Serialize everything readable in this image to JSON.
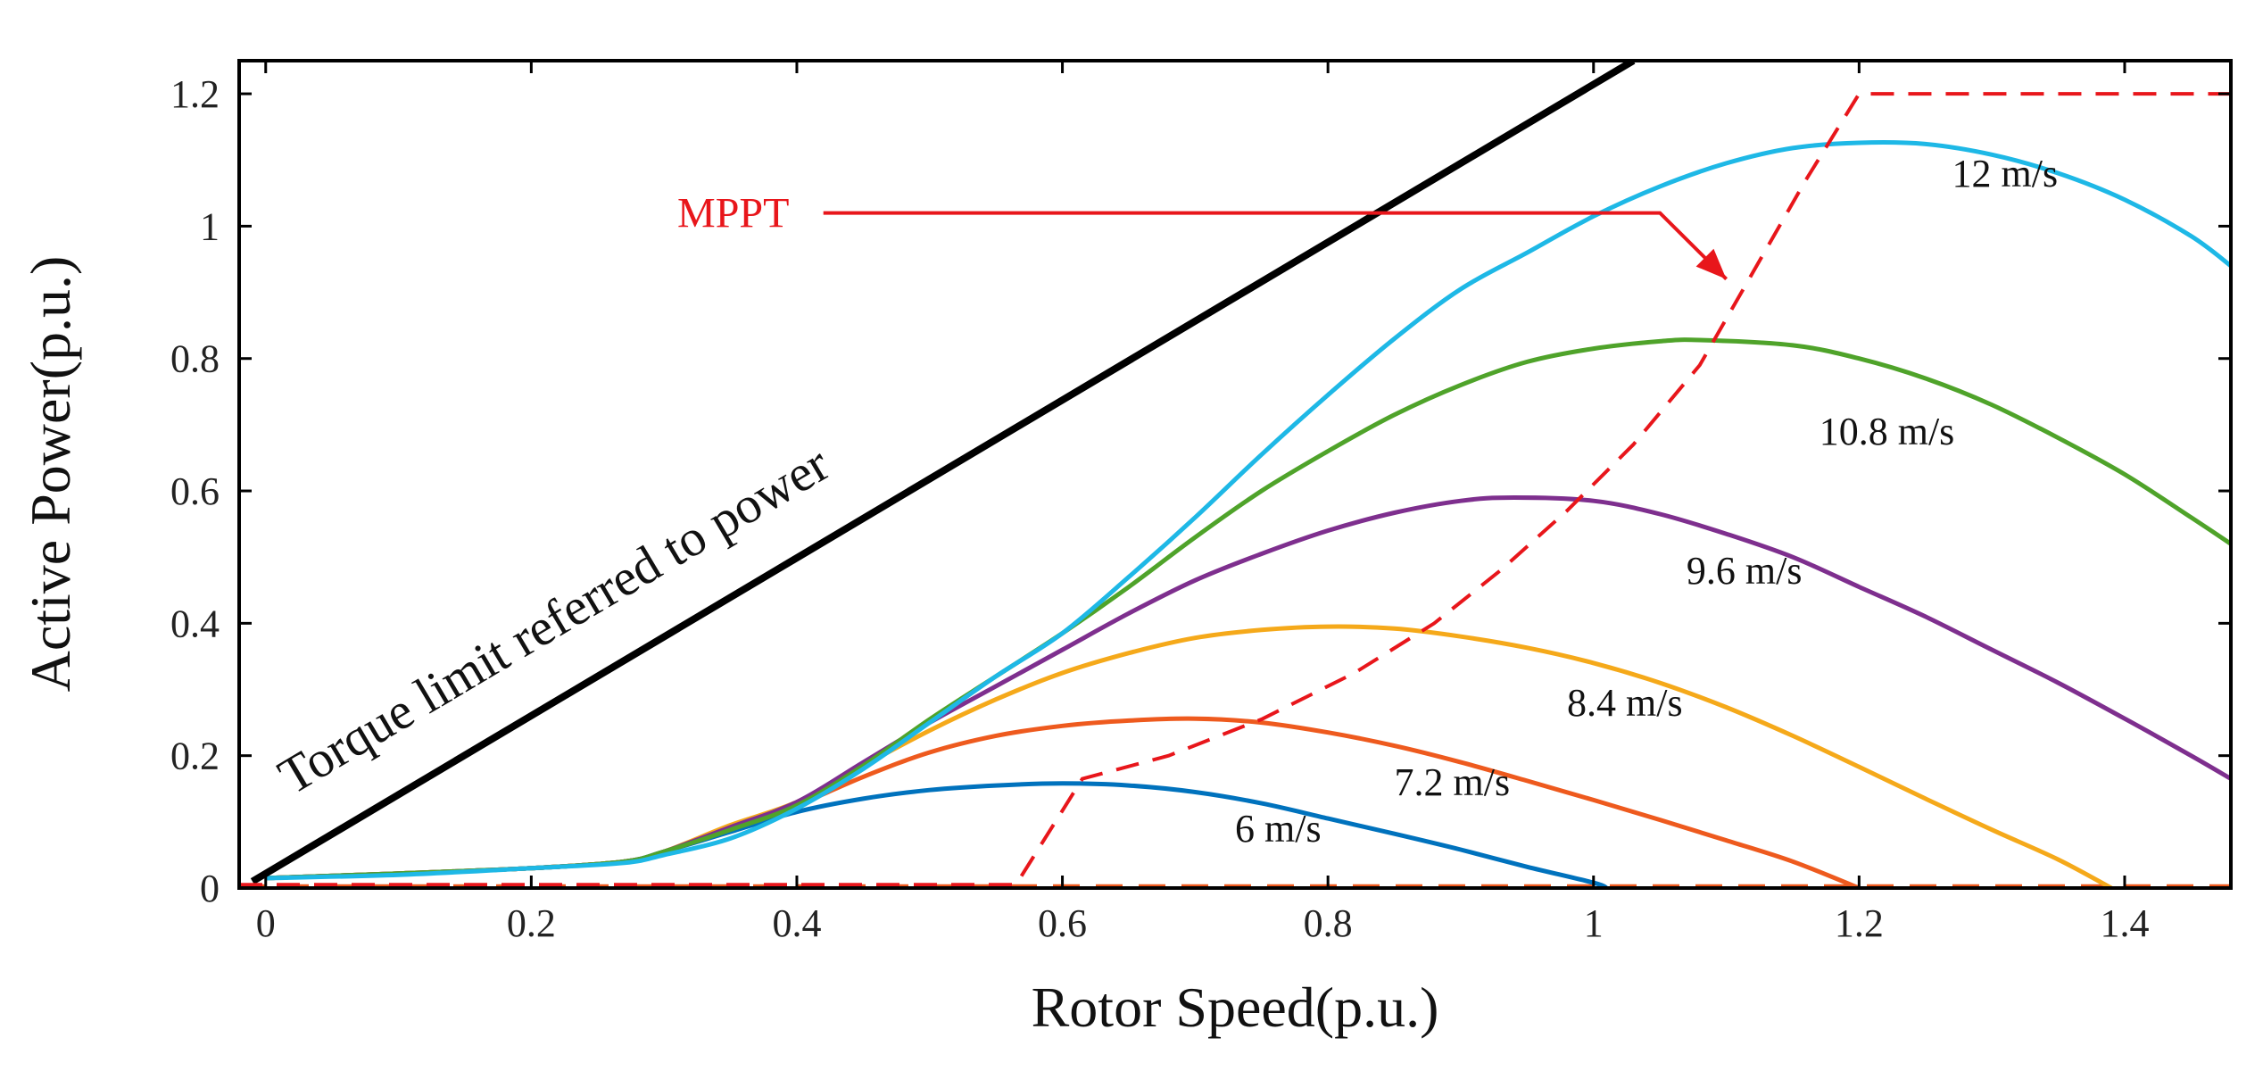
{
  "chart_data": {
    "type": "line",
    "xlabel": "Rotor Speed(p.u.)",
    "ylabel": "Active Power(p.u.)",
    "xlim": [
      -0.02,
      1.48
    ],
    "ylim": [
      0,
      1.25
    ],
    "xticks": [
      0,
      0.2,
      0.4,
      0.6,
      0.8,
      1,
      1.2,
      1.4
    ],
    "xtick_labels": [
      "0",
      "0.2",
      "0.4",
      "0.6",
      "0.8",
      "1",
      "1.2",
      "1.4"
    ],
    "yticks": [
      0,
      0.2,
      0.4,
      0.6,
      0.8,
      1,
      1.2
    ],
    "ytick_labels": [
      "0",
      "0.2",
      "0.4",
      "0.6",
      "0.8",
      "1",
      "1.2"
    ],
    "grid": false,
    "series": [
      {
        "name": "6 m/s",
        "color": "#0072BD",
        "label_at": [
          0.73,
          0.07
        ],
        "points": [
          [
            0,
            0.015
          ],
          [
            0.1,
            0.022
          ],
          [
            0.2,
            0.03
          ],
          [
            0.27,
            0.04
          ],
          [
            0.3,
            0.055
          ],
          [
            0.35,
            0.085
          ],
          [
            0.4,
            0.115
          ],
          [
            0.45,
            0.135
          ],
          [
            0.5,
            0.148
          ],
          [
            0.55,
            0.155
          ],
          [
            0.6,
            0.158
          ],
          [
            0.65,
            0.155
          ],
          [
            0.7,
            0.145
          ],
          [
            0.75,
            0.128
          ],
          [
            0.8,
            0.105
          ],
          [
            0.85,
            0.082
          ],
          [
            0.9,
            0.058
          ],
          [
            0.95,
            0.032
          ],
          [
            1.0,
            0.008
          ],
          [
            1.01,
            0.0
          ]
        ]
      },
      {
        "name": "7.2 m/s",
        "color": "#EE5A1E",
        "label_at": [
          0.85,
          0.14
        ],
        "points": [
          [
            0,
            0.015
          ],
          [
            0.1,
            0.022
          ],
          [
            0.2,
            0.03
          ],
          [
            0.27,
            0.04
          ],
          [
            0.3,
            0.055
          ],
          [
            0.35,
            0.09
          ],
          [
            0.4,
            0.125
          ],
          [
            0.45,
            0.168
          ],
          [
            0.5,
            0.205
          ],
          [
            0.55,
            0.23
          ],
          [
            0.6,
            0.245
          ],
          [
            0.65,
            0.253
          ],
          [
            0.7,
            0.256
          ],
          [
            0.75,
            0.25
          ],
          [
            0.8,
            0.235
          ],
          [
            0.85,
            0.215
          ],
          [
            0.9,
            0.19
          ],
          [
            0.95,
            0.162
          ],
          [
            1.0,
            0.133
          ],
          [
            1.05,
            0.103
          ],
          [
            1.1,
            0.072
          ],
          [
            1.15,
            0.04
          ],
          [
            1.2,
            0.0
          ]
        ]
      },
      {
        "name": "8.4 m/s",
        "color": "#F5A91A",
        "label_at": [
          0.98,
          0.26
        ],
        "points": [
          [
            0,
            0.015
          ],
          [
            0.1,
            0.022
          ],
          [
            0.2,
            0.03
          ],
          [
            0.27,
            0.04
          ],
          [
            0.3,
            0.055
          ],
          [
            0.35,
            0.095
          ],
          [
            0.4,
            0.13
          ],
          [
            0.45,
            0.185
          ],
          [
            0.5,
            0.238
          ],
          [
            0.55,
            0.285
          ],
          [
            0.6,
            0.325
          ],
          [
            0.65,
            0.355
          ],
          [
            0.7,
            0.378
          ],
          [
            0.75,
            0.39
          ],
          [
            0.8,
            0.395
          ],
          [
            0.85,
            0.392
          ],
          [
            0.9,
            0.38
          ],
          [
            0.95,
            0.363
          ],
          [
            1.0,
            0.34
          ],
          [
            1.05,
            0.31
          ],
          [
            1.1,
            0.273
          ],
          [
            1.15,
            0.23
          ],
          [
            1.2,
            0.183
          ],
          [
            1.25,
            0.135
          ],
          [
            1.3,
            0.088
          ],
          [
            1.35,
            0.043
          ],
          [
            1.39,
            0.0
          ]
        ]
      },
      {
        "name": "9.6 m/s",
        "color": "#7E2F8E",
        "label_at": [
          1.07,
          0.46
        ],
        "points": [
          [
            0,
            0.015
          ],
          [
            0.1,
            0.022
          ],
          [
            0.2,
            0.03
          ],
          [
            0.27,
            0.04
          ],
          [
            0.3,
            0.055
          ],
          [
            0.35,
            0.092
          ],
          [
            0.4,
            0.13
          ],
          [
            0.45,
            0.19
          ],
          [
            0.5,
            0.25
          ],
          [
            0.55,
            0.305
          ],
          [
            0.6,
            0.36
          ],
          [
            0.65,
            0.415
          ],
          [
            0.7,
            0.465
          ],
          [
            0.75,
            0.505
          ],
          [
            0.8,
            0.54
          ],
          [
            0.85,
            0.567
          ],
          [
            0.9,
            0.585
          ],
          [
            0.94,
            0.59
          ],
          [
            1.0,
            0.585
          ],
          [
            1.05,
            0.565
          ],
          [
            1.1,
            0.535
          ],
          [
            1.15,
            0.5
          ],
          [
            1.2,
            0.455
          ],
          [
            1.25,
            0.41
          ],
          [
            1.3,
            0.36
          ],
          [
            1.35,
            0.31
          ],
          [
            1.4,
            0.256
          ],
          [
            1.45,
            0.2
          ],
          [
            1.48,
            0.165
          ]
        ]
      },
      {
        "name": "10.8 m/s",
        "color": "#4FA32A",
        "label_at": [
          1.17,
          0.67
        ],
        "points": [
          [
            0,
            0.015
          ],
          [
            0.1,
            0.022
          ],
          [
            0.2,
            0.03
          ],
          [
            0.27,
            0.04
          ],
          [
            0.3,
            0.055
          ],
          [
            0.35,
            0.088
          ],
          [
            0.4,
            0.125
          ],
          [
            0.45,
            0.185
          ],
          [
            0.5,
            0.255
          ],
          [
            0.55,
            0.32
          ],
          [
            0.6,
            0.385
          ],
          [
            0.65,
            0.455
          ],
          [
            0.7,
            0.53
          ],
          [
            0.75,
            0.6
          ],
          [
            0.8,
            0.66
          ],
          [
            0.85,
            0.715
          ],
          [
            0.9,
            0.76
          ],
          [
            0.95,
            0.795
          ],
          [
            1.0,
            0.815
          ],
          [
            1.05,
            0.826
          ],
          [
            1.08,
            0.828
          ],
          [
            1.15,
            0.82
          ],
          [
            1.2,
            0.8
          ],
          [
            1.25,
            0.77
          ],
          [
            1.3,
            0.73
          ],
          [
            1.35,
            0.68
          ],
          [
            1.4,
            0.625
          ],
          [
            1.45,
            0.56
          ],
          [
            1.48,
            0.52
          ]
        ]
      },
      {
        "name": "12 m/s",
        "color": "#1EB8E6",
        "label_at": [
          1.27,
          1.06
        ],
        "points": [
          [
            0,
            0.015
          ],
          [
            0.1,
            0.02
          ],
          [
            0.2,
            0.03
          ],
          [
            0.27,
            0.038
          ],
          [
            0.3,
            0.05
          ],
          [
            0.35,
            0.075
          ],
          [
            0.4,
            0.12
          ],
          [
            0.45,
            0.18
          ],
          [
            0.5,
            0.25
          ],
          [
            0.55,
            0.32
          ],
          [
            0.6,
            0.385
          ],
          [
            0.65,
            0.47
          ],
          [
            0.7,
            0.56
          ],
          [
            0.75,
            0.655
          ],
          [
            0.8,
            0.745
          ],
          [
            0.85,
            0.83
          ],
          [
            0.9,
            0.905
          ],
          [
            0.95,
            0.96
          ],
          [
            1.0,
            1.015
          ],
          [
            1.05,
            1.06
          ],
          [
            1.1,
            1.095
          ],
          [
            1.15,
            1.118
          ],
          [
            1.2,
            1.126
          ],
          [
            1.25,
            1.124
          ],
          [
            1.3,
            1.108
          ],
          [
            1.35,
            1.08
          ],
          [
            1.4,
            1.04
          ],
          [
            1.45,
            0.985
          ],
          [
            1.48,
            0.94
          ]
        ]
      }
    ],
    "mppt": {
      "name": "MPPT",
      "color": "#E8161B",
      "style": "dashed",
      "points": [
        [
          -0.02,
          0.005
        ],
        [
          0.565,
          0.005
        ],
        [
          0.615,
          0.165
        ],
        [
          0.68,
          0.2
        ],
        [
          0.75,
          0.255
        ],
        [
          0.82,
          0.325
        ],
        [
          0.88,
          0.4
        ],
        [
          0.93,
          0.48
        ],
        [
          0.98,
          0.57
        ],
        [
          1.03,
          0.67
        ],
        [
          1.08,
          0.79
        ],
        [
          1.12,
          0.93
        ],
        [
          1.16,
          1.07
        ],
        [
          1.2,
          1.2
        ],
        [
          1.48,
          1.2
        ]
      ],
      "label_at": [
        0.31,
        1.02
      ],
      "arrow": [
        [
          0.42,
          1.02
        ],
        [
          1.05,
          1.02
        ],
        [
          1.1,
          0.92
        ]
      ]
    },
    "orange_baseline": {
      "color": "#EE5A1E",
      "style": "dashed",
      "points": [
        [
          -0.02,
          0.003
        ],
        [
          1.48,
          0.003
        ]
      ]
    },
    "torque_limit": {
      "label": "Torque limit referred to power",
      "color": "#000000",
      "points": [
        [
          -0.01,
          0.01
        ],
        [
          1.03,
          1.25
        ]
      ],
      "label_at": [
        0.02,
        0.14
      ]
    }
  }
}
